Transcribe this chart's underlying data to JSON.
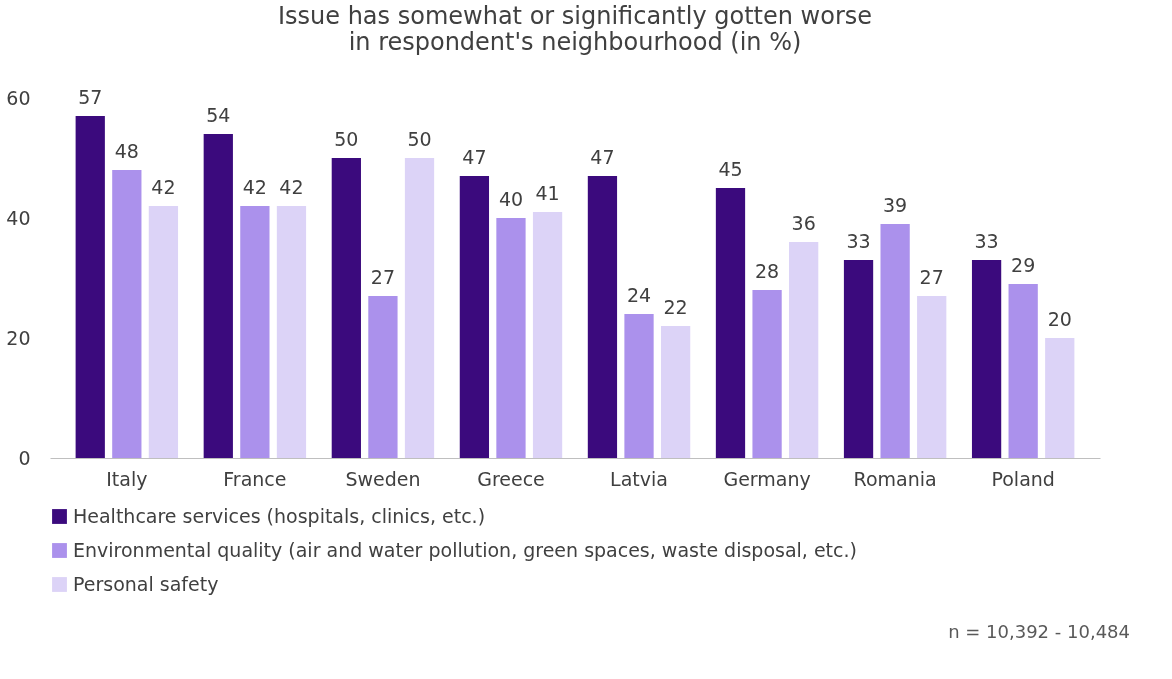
{
  "chart_data": {
    "type": "bar",
    "title": [
      "Issue has somewhat or significantly gotten worse",
      "in respondent's neighbourhood (in %)"
    ],
    "categories": [
      "Italy",
      "France",
      "Sweden",
      "Greece",
      "Latvia",
      "Germany",
      "Romania",
      "Poland"
    ],
    "series": [
      {
        "name": "Healthcare services (hospitals, clinics, etc.)",
        "color": "#3b0a7d",
        "values": [
          57,
          54,
          50,
          47,
          47,
          45,
          33,
          33
        ]
      },
      {
        "name": "Environmental quality (air and water pollution, green spaces, waste disposal, etc.)",
        "color": "#ab91ec",
        "values": [
          48,
          42,
          27,
          40,
          24,
          28,
          39,
          29
        ]
      },
      {
        "name": "Personal safety",
        "color": "#dcd3f7",
        "values": [
          42,
          42,
          50,
          41,
          22,
          36,
          27,
          20
        ]
      }
    ],
    "ylim": [
      0,
      60
    ],
    "yticks": [
      0,
      20,
      40,
      60
    ],
    "grid": false,
    "legend": "bottom",
    "data_labels": true,
    "annotations": [
      "n = 10,392 - 10,484"
    ]
  }
}
